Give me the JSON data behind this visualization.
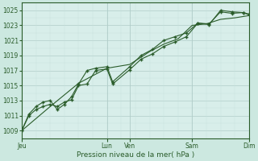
{
  "background_color": "#cce8e0",
  "plot_bg_color": "#d8eeea",
  "grid_major_color": "#b0ccc8",
  "grid_minor_color": "#c8e0dc",
  "line_color": "#2a5c2a",
  "xlabel": "Pression niveau de la mer( hPa )",
  "ylim": [
    1008,
    1026
  ],
  "yticks": [
    1009,
    1011,
    1013,
    1015,
    1017,
    1019,
    1021,
    1023,
    1025
  ],
  "xlim": [
    0,
    8
  ],
  "day_labels": [
    "Jeu",
    "Lun",
    "Ven",
    "Sam",
    "Dim"
  ],
  "day_positions": [
    0,
    3.0,
    3.8,
    6.0,
    8.0
  ],
  "series1_x": [
    0,
    0.25,
    0.5,
    0.75,
    1.0,
    1.25,
    1.5,
    1.75,
    2.0,
    2.3,
    2.6,
    3.0,
    3.2,
    3.8,
    4.2,
    4.6,
    5.0,
    5.4,
    5.8,
    6.2,
    6.6,
    7.0,
    7.4,
    7.8,
    8.0
  ],
  "series1_y": [
    1009.0,
    1011.0,
    1011.8,
    1012.2,
    1012.5,
    1012.2,
    1012.8,
    1013.1,
    1015.0,
    1015.2,
    1017.0,
    1017.2,
    1015.2,
    1017.1,
    1018.5,
    1019.2,
    1020.2,
    1020.8,
    1021.5,
    1023.3,
    1023.2,
    1024.8,
    1024.6,
    1024.7,
    1024.5
  ],
  "series2_x": [
    0,
    0.25,
    0.5,
    0.75,
    1.0,
    1.25,
    1.5,
    1.75,
    2.0,
    2.3,
    2.6,
    3.0,
    3.2,
    3.8,
    4.2,
    4.6,
    5.0,
    5.4,
    5.8,
    6.2,
    6.6,
    7.0,
    7.4,
    7.8,
    8.0
  ],
  "series2_y": [
    1009.0,
    1011.2,
    1012.2,
    1012.8,
    1013.0,
    1011.8,
    1012.5,
    1013.5,
    1015.2,
    1017.0,
    1017.3,
    1017.5,
    1015.5,
    1017.5,
    1019.0,
    1019.8,
    1021.0,
    1021.5,
    1022.0,
    1023.3,
    1023.1,
    1025.0,
    1024.8,
    1024.7,
    1024.4
  ],
  "series3_x": [
    0,
    1.0,
    2.0,
    3.0,
    3.8,
    4.5,
    5.0,
    5.5,
    6.0,
    6.5,
    7.0,
    7.5,
    8.0
  ],
  "series3_y": [
    1009.0,
    1012.2,
    1015.3,
    1017.3,
    1017.8,
    1019.5,
    1020.5,
    1021.2,
    1023.0,
    1023.2,
    1023.8,
    1024.0,
    1024.3
  ]
}
